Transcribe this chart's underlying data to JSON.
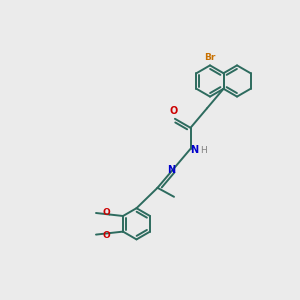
{
  "bg_color": "#ebebeb",
  "bond_color": "#2d6b5e",
  "br_color": "#c87000",
  "N_color": "#0000cc",
  "O_color": "#cc0000",
  "H_color": "#808080",
  "lw": 1.4,
  "ring_r": 0.52,
  "xlim": [
    0,
    10
  ],
  "ylim": [
    0,
    10
  ]
}
